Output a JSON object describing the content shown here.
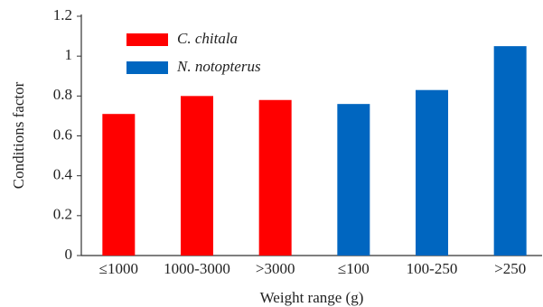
{
  "chart_data": {
    "type": "bar",
    "x_label": "Weight range (g)",
    "y_label": "Conditions factor",
    "categories": [
      "≤1000",
      "1000-3000",
      ">3000",
      "≤100",
      "100-250",
      ">250"
    ],
    "series": [
      {
        "name": "C. chitala",
        "color": "#ff0000",
        "values": [
          0.71,
          0.8,
          0.78,
          null,
          null,
          null
        ]
      },
      {
        "name": "N. notopterus",
        "color": "#0066c0",
        "values": [
          null,
          null,
          null,
          0.76,
          0.83,
          1.05
        ]
      }
    ],
    "ylim": [
      0,
      1.2
    ],
    "yticks": [
      0,
      0.2,
      0.4,
      0.6,
      0.8,
      1,
      1.2
    ],
    "grid": false,
    "legend": "top-left"
  }
}
